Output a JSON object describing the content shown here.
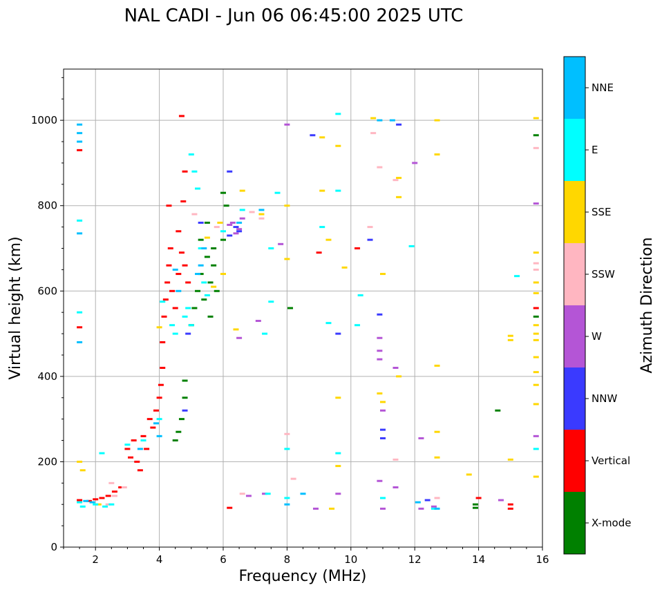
{
  "chart_data": {
    "type": "scatter",
    "title": "NAL CADI - Jun 06 06:45:00 2025 UTC",
    "xlabel": "Frequency (MHz)",
    "ylabel": "Virtual height (km)",
    "xlim": [
      1,
      16
    ],
    "ylim": [
      0,
      1120
    ],
    "xticks": [
      "2",
      "4",
      "6",
      "8",
      "10",
      "12",
      "14",
      "16"
    ],
    "yticks": [
      "0",
      "200",
      "400",
      "600",
      "800",
      "1000"
    ],
    "xtick_values": [
      2,
      4,
      6,
      8,
      10,
      12,
      14,
      16
    ],
    "ytick_values": [
      0,
      200,
      400,
      600,
      800,
      1000
    ],
    "grid": true,
    "colorbar": {
      "label": "Azimuth Direction",
      "categories": [
        {
          "name": "X-mode",
          "color": "#008000"
        },
        {
          "name": "Vertical",
          "color": "#ff0000"
        },
        {
          "name": "NNW",
          "color": "#3a3aff"
        },
        {
          "name": "W",
          "color": "#b455d6"
        },
        {
          "name": "SSW",
          "color": "#ffb6c1"
        },
        {
          "name": "SSE",
          "color": "#ffd700"
        },
        {
          "name": "E",
          "color": "#00ffff"
        },
        {
          "name": "NNE",
          "color": "#00bfff"
        }
      ]
    },
    "series": [
      {
        "name": "Vertical",
        "points": [
          [
            1.5,
            110
          ],
          [
            1.8,
            108
          ],
          [
            2.0,
            112
          ],
          [
            2.2,
            115
          ],
          [
            2.4,
            120
          ],
          [
            2.6,
            130
          ],
          [
            2.8,
            140
          ],
          [
            3.0,
            230
          ],
          [
            3.1,
            210
          ],
          [
            3.2,
            250
          ],
          [
            3.3,
            200
          ],
          [
            3.4,
            180
          ],
          [
            3.5,
            260
          ],
          [
            3.6,
            230
          ],
          [
            3.7,
            300
          ],
          [
            3.8,
            280
          ],
          [
            3.9,
            320
          ],
          [
            4.0,
            350
          ],
          [
            4.05,
            380
          ],
          [
            4.1,
            420
          ],
          [
            4.1,
            480
          ],
          [
            4.15,
            540
          ],
          [
            4.2,
            580
          ],
          [
            4.25,
            620
          ],
          [
            4.3,
            660
          ],
          [
            4.35,
            700
          ],
          [
            4.4,
            600
          ],
          [
            4.5,
            560
          ],
          [
            4.6,
            640
          ],
          [
            4.6,
            740
          ],
          [
            4.7,
            690
          ],
          [
            4.8,
            660
          ],
          [
            4.9,
            620
          ],
          [
            4.75,
            810
          ],
          [
            4.8,
            880
          ],
          [
            4.7,
            1010
          ],
          [
            4.3,
            800
          ],
          [
            1.5,
            930
          ],
          [
            1.5,
            515
          ],
          [
            6.2,
            92
          ],
          [
            15.0,
            100
          ],
          [
            15.0,
            90
          ],
          [
            14.0,
            115
          ],
          [
            15.8,
            560
          ],
          [
            10.2,
            700
          ],
          [
            9.0,
            690
          ]
        ]
      },
      {
        "name": "X-mode",
        "points": [
          [
            4.5,
            250
          ],
          [
            4.6,
            270
          ],
          [
            4.7,
            300
          ],
          [
            4.8,
            390
          ],
          [
            4.8,
            350
          ],
          [
            5.0,
            520
          ],
          [
            5.1,
            560
          ],
          [
            5.2,
            600
          ],
          [
            5.3,
            640
          ],
          [
            5.4,
            580
          ],
          [
            5.5,
            680
          ],
          [
            5.6,
            620
          ],
          [
            5.7,
            660
          ],
          [
            5.5,
            760
          ],
          [
            5.3,
            720
          ],
          [
            5.7,
            700
          ],
          [
            5.6,
            540
          ],
          [
            5.8,
            600
          ],
          [
            6.0,
            720
          ],
          [
            6.1,
            800
          ],
          [
            6.0,
            830
          ],
          [
            8.1,
            560
          ],
          [
            14.6,
            320
          ],
          [
            13.9,
            92
          ],
          [
            13.9,
            100
          ],
          [
            15.8,
            540
          ],
          [
            15.8,
            965
          ]
        ]
      },
      {
        "name": "NNW",
        "points": [
          [
            4.8,
            320
          ],
          [
            4.9,
            500
          ],
          [
            5.3,
            760
          ],
          [
            6.2,
            730
          ],
          [
            6.4,
            750
          ],
          [
            6.5,
            740
          ],
          [
            8.8,
            965
          ],
          [
            9.6,
            500
          ],
          [
            10.6,
            720
          ],
          [
            10.9,
            545
          ],
          [
            11.0,
            275
          ],
          [
            11.0,
            255
          ],
          [
            11.5,
            990
          ],
          [
            12.4,
            110
          ],
          [
            6.2,
            880
          ]
        ]
      },
      {
        "name": "W",
        "points": [
          [
            6.3,
            760
          ],
          [
            6.4,
            735
          ],
          [
            6.5,
            745
          ],
          [
            6.6,
            770
          ],
          [
            6.2,
            755
          ],
          [
            6.5,
            490
          ],
          [
            6.8,
            120
          ],
          [
            7.3,
            125
          ],
          [
            7.8,
            710
          ],
          [
            8.0,
            990
          ],
          [
            8.9,
            90
          ],
          [
            9.6,
            125
          ],
          [
            10.9,
            490
          ],
          [
            10.9,
            460
          ],
          [
            10.9,
            440
          ],
          [
            11.0,
            320
          ],
          [
            11.0,
            90
          ],
          [
            11.4,
            420
          ],
          [
            11.4,
            140
          ],
          [
            12.0,
            900
          ],
          [
            12.2,
            255
          ],
          [
            12.2,
            90
          ],
          [
            12.6,
            95
          ],
          [
            14.7,
            110
          ],
          [
            15.8,
            260
          ],
          [
            15.8,
            805
          ],
          [
            7.1,
            530
          ],
          [
            10.9,
            155
          ]
        ]
      },
      {
        "name": "SSW",
        "points": [
          [
            2.4,
            100
          ],
          [
            2.5,
            150
          ],
          [
            2.6,
            120
          ],
          [
            2.9,
            140
          ],
          [
            5.1,
            780
          ],
          [
            5.8,
            750
          ],
          [
            6.9,
            785
          ],
          [
            8.0,
            265
          ],
          [
            8.2,
            160
          ],
          [
            10.6,
            750
          ],
          [
            10.7,
            970
          ],
          [
            10.9,
            890
          ],
          [
            11.4,
            860
          ],
          [
            11.4,
            205
          ],
          [
            12.7,
            115
          ],
          [
            15.8,
            650
          ],
          [
            15.8,
            665
          ],
          [
            15.8,
            935
          ],
          [
            6.6,
            125
          ],
          [
            7.2,
            770
          ]
        ]
      },
      {
        "name": "SSE",
        "points": [
          [
            1.5,
            200
          ],
          [
            1.6,
            180
          ],
          [
            2.1,
            100
          ],
          [
            4.0,
            515
          ],
          [
            5.5,
            725
          ],
          [
            6.4,
            510
          ],
          [
            6.6,
            835
          ],
          [
            7.2,
            780
          ],
          [
            8.0,
            675
          ],
          [
            8.0,
            800
          ],
          [
            9.1,
            960
          ],
          [
            9.1,
            835
          ],
          [
            9.6,
            940
          ],
          [
            9.6,
            350
          ],
          [
            9.6,
            190
          ],
          [
            9.8,
            655
          ],
          [
            10.7,
            1005
          ],
          [
            10.9,
            360
          ],
          [
            11.0,
            340
          ],
          [
            11.5,
            865
          ],
          [
            11.5,
            820
          ],
          [
            11.5,
            400
          ],
          [
            11.0,
            640
          ],
          [
            12.7,
            1000
          ],
          [
            12.7,
            920
          ],
          [
            12.7,
            425
          ],
          [
            12.7,
            270
          ],
          [
            12.7,
            210
          ],
          [
            13.7,
            170
          ],
          [
            15.0,
            495
          ],
          [
            15.0,
            485
          ],
          [
            15.8,
            690
          ],
          [
            15.8,
            620
          ],
          [
            15.8,
            595
          ],
          [
            15.8,
            520
          ],
          [
            15.8,
            500
          ],
          [
            15.8,
            485
          ],
          [
            15.8,
            445
          ],
          [
            15.8,
            410
          ],
          [
            15.8,
            380
          ],
          [
            15.8,
            335
          ],
          [
            15.8,
            165
          ],
          [
            15.8,
            1005
          ],
          [
            15.0,
            205
          ],
          [
            9.3,
            720
          ],
          [
            5.9,
            760
          ],
          [
            6.0,
            640
          ],
          [
            5.7,
            610
          ],
          [
            9.4,
            90
          ]
        ]
      },
      {
        "name": "E",
        "points": [
          [
            1.5,
            105
          ],
          [
            1.6,
            95
          ],
          [
            2.0,
            100
          ],
          [
            2.3,
            95
          ],
          [
            2.5,
            100
          ],
          [
            3.0,
            240
          ],
          [
            3.5,
            250
          ],
          [
            4.0,
            300
          ],
          [
            4.1,
            575
          ],
          [
            4.4,
            520
          ],
          [
            4.5,
            500
          ],
          [
            4.8,
            540
          ],
          [
            4.9,
            560
          ],
          [
            5.0,
            520
          ],
          [
            5.0,
            920
          ],
          [
            5.1,
            880
          ],
          [
            5.2,
            840
          ],
          [
            5.3,
            700
          ],
          [
            5.4,
            620
          ],
          [
            5.5,
            590
          ],
          [
            6.0,
            740
          ],
          [
            6.6,
            790
          ],
          [
            7.3,
            500
          ],
          [
            7.5,
            700
          ],
          [
            7.5,
            575
          ],
          [
            7.7,
            830
          ],
          [
            8.0,
            115
          ],
          [
            8.0,
            230
          ],
          [
            9.1,
            750
          ],
          [
            9.3,
            525
          ],
          [
            9.6,
            835
          ],
          [
            9.6,
            1015
          ],
          [
            9.6,
            220
          ],
          [
            10.2,
            520
          ],
          [
            10.3,
            590
          ],
          [
            11.0,
            115
          ],
          [
            11.9,
            705
          ],
          [
            12.6,
            90
          ],
          [
            15.2,
            635
          ],
          [
            15.8,
            230
          ],
          [
            7.4,
            125
          ],
          [
            2.2,
            220
          ],
          [
            1.5,
            765
          ],
          [
            1.5,
            550
          ]
        ]
      },
      {
        "name": "NNE",
        "points": [
          [
            1.5,
            990
          ],
          [
            1.5,
            970
          ],
          [
            1.5,
            950
          ],
          [
            1.5,
            735
          ],
          [
            1.5,
            480
          ],
          [
            1.7,
            108
          ],
          [
            1.9,
            105
          ],
          [
            3.4,
            230
          ],
          [
            3.9,
            290
          ],
          [
            4.0,
            260
          ],
          [
            4.5,
            650
          ],
          [
            4.6,
            600
          ],
          [
            5.2,
            640
          ],
          [
            5.3,
            660
          ],
          [
            5.4,
            700
          ],
          [
            6.5,
            760
          ],
          [
            7.2,
            790
          ],
          [
            8.0,
            100
          ],
          [
            8.5,
            125
          ],
          [
            10.9,
            1000
          ],
          [
            11.3,
            1000
          ],
          [
            12.1,
            105
          ],
          [
            12.7,
            90
          ]
        ]
      }
    ]
  }
}
